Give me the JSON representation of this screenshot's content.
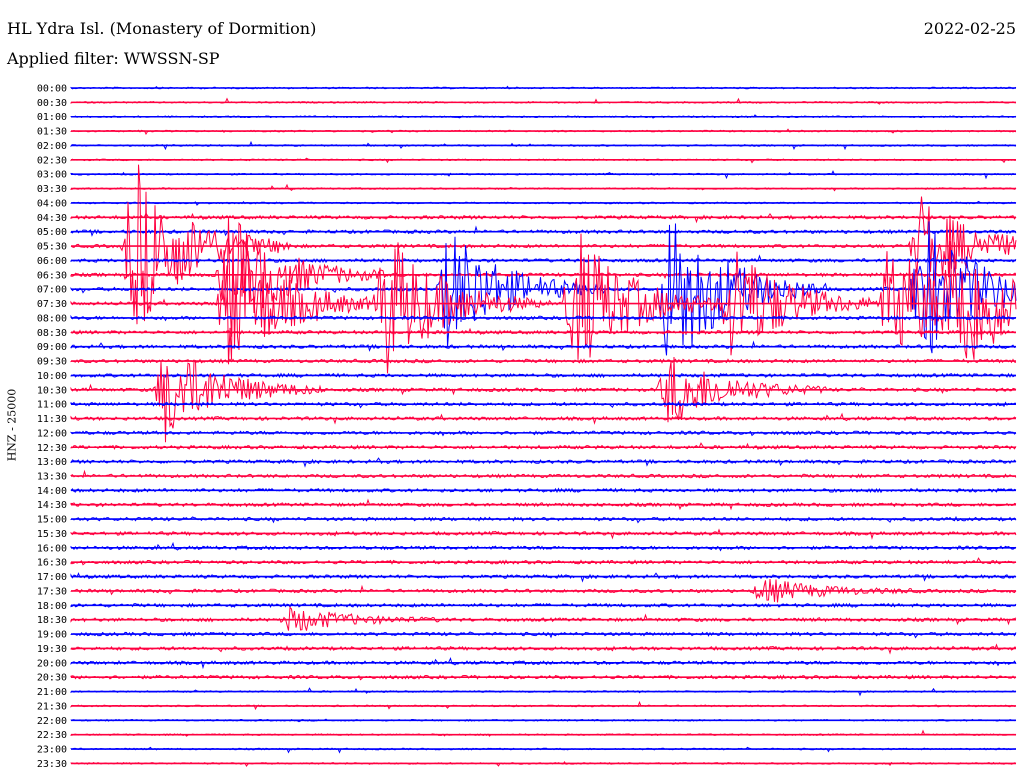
{
  "header": {
    "station": "HL Ydra Isl. (Monastery of Dormition)",
    "date": "2022-02-25",
    "filter": "Applied filter: WWSSN-SP",
    "channel": "HNZ - 25000"
  },
  "chart_data": {
    "type": "line",
    "title": "HL Ydra Isl. (Monastery of Dormition)",
    "ylabel": "HNZ - 25000",
    "xlabel": "",
    "colors": [
      "#0000ff",
      "#ff0040"
    ],
    "trace_labels": [
      "00:00",
      "00:30",
      "01:00",
      "01:30",
      "02:00",
      "02:30",
      "03:00",
      "03:30",
      "04:00",
      "04:30",
      "05:00",
      "05:30",
      "06:00",
      "06:30",
      "07:00",
      "07:30",
      "08:00",
      "08:30",
      "09:00",
      "09:30",
      "10:00",
      "10:30",
      "11:00",
      "11:30",
      "12:00",
      "12:30",
      "13:00",
      "13:30",
      "14:00",
      "14:30",
      "15:00",
      "15:30",
      "16:00",
      "16:30",
      "17:00",
      "17:30",
      "18:00",
      "18:30",
      "19:00",
      "19:30",
      "20:00",
      "20:30",
      "21:00",
      "21:30",
      "22:00",
      "22:30",
      "23:00",
      "23:30"
    ],
    "events": [
      {
        "trace": "05:30",
        "minute": 2,
        "amplitude": 7
      },
      {
        "trace": "05:30",
        "minute": 27,
        "amplitude": 4
      },
      {
        "trace": "06:30",
        "minute": 5,
        "amplitude": 5
      },
      {
        "trace": "07:00",
        "minute": 12,
        "amplitude": 5
      },
      {
        "trace": "07:30",
        "minute": 26,
        "amplitude": 5
      },
      {
        "trace": "07:00",
        "minute": 19,
        "amplitude": 7
      },
      {
        "trace": "07:00",
        "minute": 27,
        "amplitude": 6
      },
      {
        "trace": "07:30",
        "minute": 5,
        "amplitude": 6
      },
      {
        "trace": "07:30",
        "minute": 10,
        "amplitude": 6
      },
      {
        "trace": "07:30",
        "minute": 16,
        "amplitude": 6
      },
      {
        "trace": "07:30",
        "minute": 21,
        "amplitude": 5
      },
      {
        "trace": "07:30",
        "minute": 28,
        "amplitude": 6
      },
      {
        "trace": "10:30",
        "minute": 3,
        "amplitude": 4
      },
      {
        "trace": "10:30",
        "minute": 19,
        "amplitude": 3
      },
      {
        "trace": "17:30",
        "minute": 22,
        "amplitude": 1
      },
      {
        "trace": "18:30",
        "minute": 7,
        "amplitude": 1
      }
    ]
  }
}
